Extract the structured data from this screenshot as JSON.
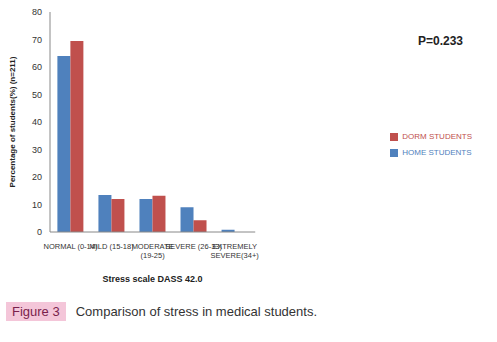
{
  "chart_data": {
    "type": "bar",
    "categories": [
      "NORMAL (0-14)",
      "MILD (15-18)",
      "MODERATE (19-25)",
      "SEVERE (26-33)",
      "EXTREMELY SEVERE(34+)"
    ],
    "series": [
      {
        "name": "HOME STUDENTS",
        "color": "#4f81bd",
        "values": [
          64,
          13.5,
          12,
          9,
          0.8
        ]
      },
      {
        "name": "DORM STUDENTS",
        "color": "#c0504d",
        "values": [
          69.5,
          12,
          13.2,
          4.3,
          0
        ]
      }
    ],
    "x_label": "Stress scale DASS 42.0",
    "y_label": "Percentage of students(%) (n=211)",
    "annotations": [
      "P=0.233"
    ],
    "ylim": [
      0,
      80
    ],
    "yticks": [
      0,
      10,
      20,
      30,
      40,
      50,
      60,
      70,
      80
    ],
    "grid": false,
    "legend": "right"
  },
  "caption": {
    "label": "Figure 3",
    "text": "Comparison of stress in medical students."
  }
}
